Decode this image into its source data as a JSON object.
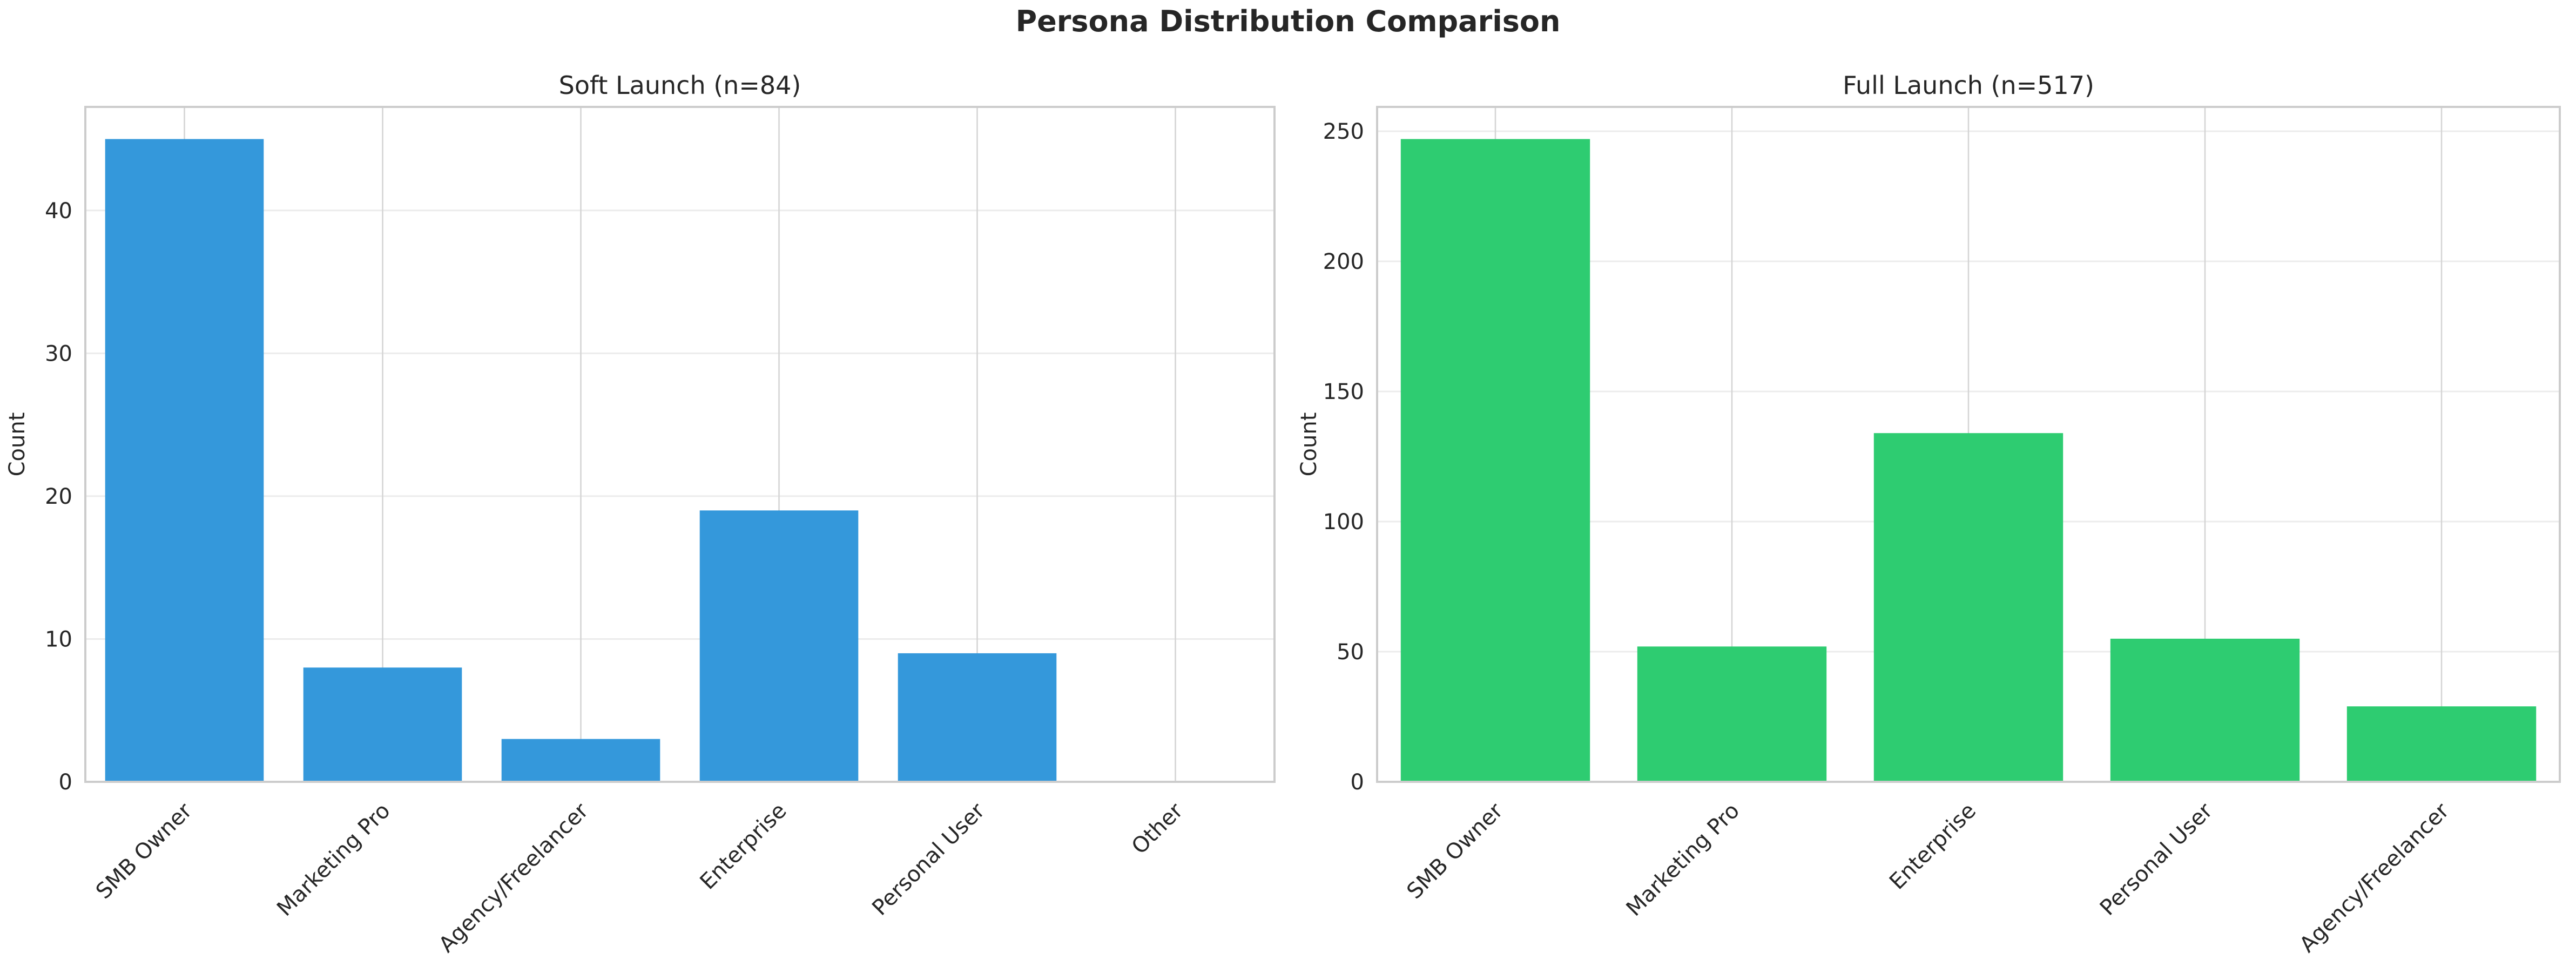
{
  "figure": {
    "title": "Persona Distribution Comparison",
    "background": "#ffffff",
    "text_color": "#262626"
  },
  "chart_data": [
    {
      "type": "bar",
      "title": "Soft Launch (n=84)",
      "xlabel": "",
      "ylabel": "Count",
      "categories": [
        "SMB Owner",
        "Marketing Pro",
        "Agency/Freelancer",
        "Enterprise",
        "Personal User",
        "Other"
      ],
      "values": [
        45,
        8,
        3,
        19,
        9,
        0
      ],
      "bar_color": "#3498db",
      "ylim": [
        0,
        47.25
      ],
      "yticks": [
        0,
        10,
        20,
        30,
        40
      ],
      "grid": true,
      "legend_position": "none",
      "tick_rotation_deg": 45
    },
    {
      "type": "bar",
      "title": "Full Launch (n=517)",
      "xlabel": "",
      "ylabel": "Count",
      "categories": [
        "SMB Owner",
        "Marketing Pro",
        "Enterprise",
        "Personal User",
        "Agency/Freelancer"
      ],
      "values": [
        247,
        52,
        134,
        55,
        29
      ],
      "bar_color": "#2ecc71",
      "ylim": [
        0,
        259.35
      ],
      "yticks": [
        0,
        50,
        100,
        150,
        200,
        250
      ],
      "grid": true,
      "legend_position": "none",
      "tick_rotation_deg": 45
    }
  ],
  "style_colors": {
    "h_gridline": "#ececec",
    "v_gridline": "#d4d4d4",
    "spine": "#cccccc"
  }
}
